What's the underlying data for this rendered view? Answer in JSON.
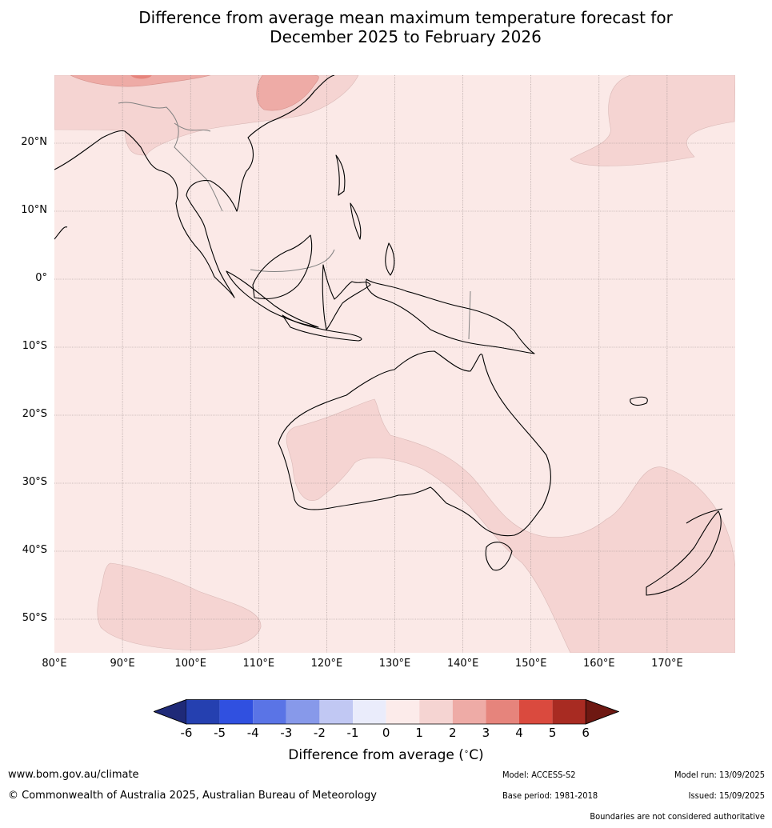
{
  "title_line1": "Difference from average mean maximum temperature forecast for",
  "title_line2": "December 2025 to February 2026",
  "map": {
    "lat_labels": [
      "20°N",
      "10°N",
      "0°",
      "10°S",
      "20°S",
      "30°S",
      "40°S",
      "50°S"
    ],
    "lon_labels": [
      "80°E",
      "90°E",
      "100°E",
      "110°E",
      "120°E",
      "130°E",
      "140°E",
      "150°E",
      "160°E",
      "170°E"
    ],
    "background_color": "#fbe9e7",
    "class_1_2_color": "#f5d4d2",
    "class_2_3_color": "#eeaba6",
    "coast_color": "#000000",
    "border_color": "#808080"
  },
  "colorbar": {
    "labels": [
      "-6",
      "-5",
      "-4",
      "-3",
      "-2",
      "-1",
      "0",
      "1",
      "2",
      "3",
      "4",
      "5",
      "6"
    ],
    "colors": [
      "#1f2a78",
      "#2540b0",
      "#3050e0",
      "#5a74e6",
      "#8799ea",
      "#c1c8f3",
      "#eaecfb",
      "#fcebea",
      "#f5d4d2",
      "#eeaba6",
      "#e6847c",
      "#da4a3e",
      "#a82b22",
      "#6e1812"
    ],
    "title": "Difference from average (",
    "unit": "C)"
  },
  "footer": {
    "website": "www.bom.gov.au/climate",
    "copyright": "© Commonwealth of Australia 2025, Australian Bureau of Meteorology",
    "model": "Model: ACCESS-S2",
    "model_run": "Model run: 13/09/2025",
    "base_period": "Base period: 1981-2018",
    "issued": "Issued: 15/09/2025",
    "boundaries": "Boundaries are not considered authoritative"
  }
}
